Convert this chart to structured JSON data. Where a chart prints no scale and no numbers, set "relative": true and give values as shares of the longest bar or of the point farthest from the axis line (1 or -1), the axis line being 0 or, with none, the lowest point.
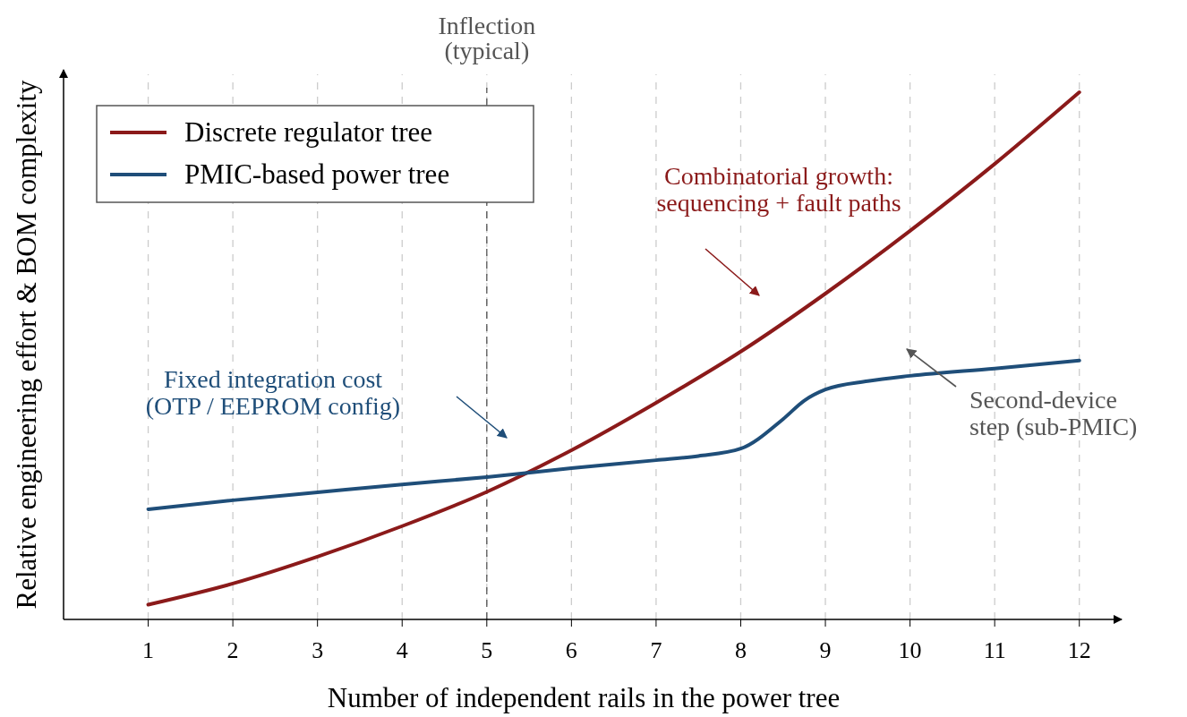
{
  "chart_data": {
    "type": "line",
    "relative": true,
    "xlabel": "Number of independent rails in the power tree",
    "ylabel": "Relative engineering effort & BOM complexity",
    "xlim": [
      0,
      12.5
    ],
    "xticks": [
      1,
      2,
      3,
      4,
      5,
      6,
      7,
      8,
      9,
      10,
      11,
      12
    ],
    "grid": "x",
    "legend": "top left",
    "line_style": "solid",
    "marker": "none",
    "series": [
      {
        "name": "Discrete regulator tree",
        "color": "#8b1a1a",
        "x": [
          1,
          2,
          3,
          4,
          5,
          6,
          7,
          8,
          9,
          10,
          11,
          12
        ],
        "values": [
          0.028,
          0.068,
          0.119,
          0.177,
          0.242,
          0.321,
          0.411,
          0.508,
          0.618,
          0.737,
          0.864,
          1
        ]
      },
      {
        "name": "PMIC-based power tree",
        "color": "#1f4e79",
        "x": [
          1,
          2,
          3,
          4,
          5,
          6,
          7,
          7.5,
          8,
          8.5,
          8.75,
          9,
          9.5,
          10,
          11,
          12
        ],
        "values": [
          0.209,
          0.226,
          0.241,
          0.256,
          0.27,
          0.287,
          0.302,
          0.31,
          0.324,
          0.38,
          0.415,
          0.436,
          0.452,
          0.462,
          0.476,
          0.491
        ]
      }
    ],
    "ref_lines": [
      {
        "axis": "x",
        "value": 5,
        "label": "Inflection\n(typical)",
        "color": "#555555",
        "line_style": "dashed"
      }
    ],
    "annotations": [
      "Combinatorial growth:\nsequencing + fault paths",
      "Fixed integration cost\n(OTP / EEPROM config)",
      "Second-device\nstep (sub-PMIC)"
    ]
  }
}
